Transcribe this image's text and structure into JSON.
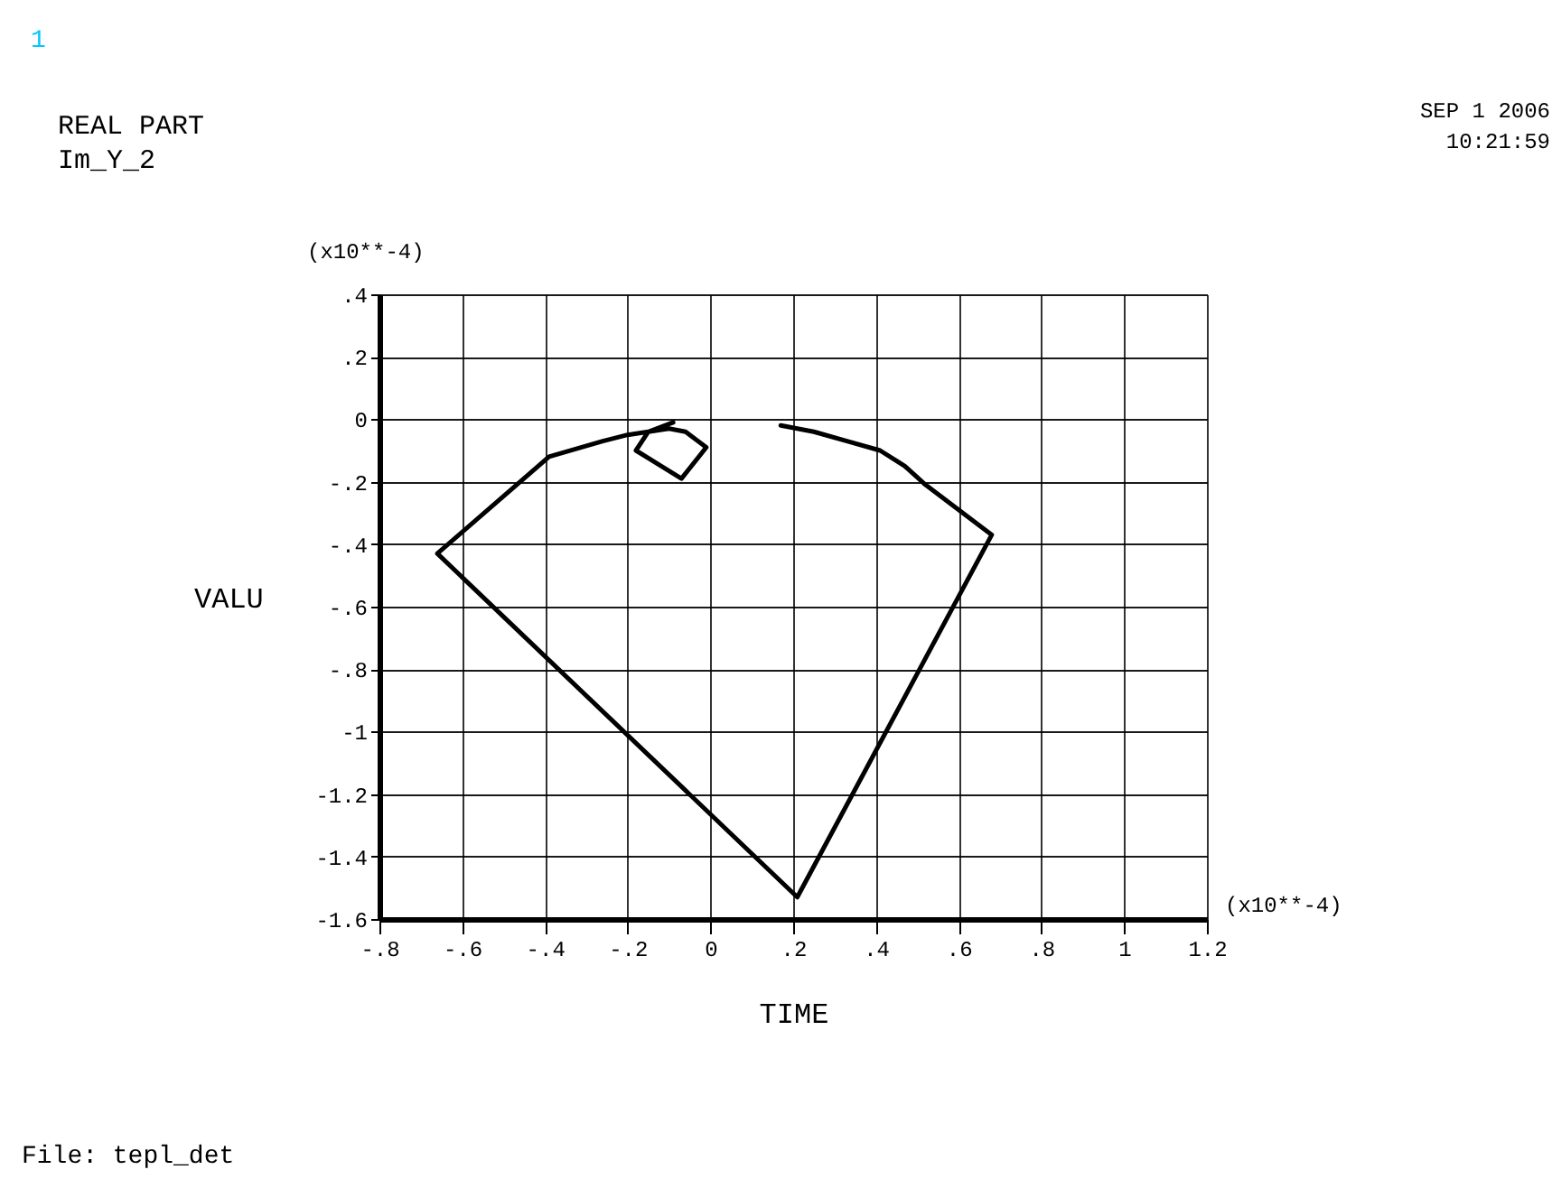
{
  "chart_data": {
    "type": "line",
    "title": "REAL PART",
    "subtitle": "Im_Y_2",
    "xlabel": "TIME",
    "ylabel": "VALU",
    "annotations": [
      "1",
      "(x10**-4)",
      "(x10**-4)",
      "SEP 1 2006",
      "10:21:59",
      "File: tepl_det"
    ],
    "x": [
      0.17,
      0.25,
      0.33,
      0.41,
      0.47,
      0.52,
      0.6,
      0.68,
      0.21,
      -0.66,
      -0.39,
      -0.26,
      -0.2,
      -0.15,
      -0.1,
      -0.06,
      -0.01,
      -0.07,
      -0.18,
      -0.15,
      -0.09
    ],
    "series": [
      {
        "color": "#000000",
        "values": [
          -0.02,
          -0.04,
          -0.07,
          -0.1,
          -0.15,
          -0.21,
          -0.29,
          -0.37,
          -1.53,
          -0.43,
          -0.12,
          -0.07,
          -0.05,
          -0.04,
          -0.03,
          -0.04,
          -0.09,
          -0.19,
          -0.1,
          -0.04,
          -0.01
        ]
      }
    ],
    "xlim": [
      -0.8,
      1.2
    ],
    "xticks": [
      {
        "value": -0.8,
        "label": "-.8"
      },
      {
        "value": -0.6,
        "label": "-.6"
      },
      {
        "value": -0.4,
        "label": "-.4"
      },
      {
        "value": -0.2,
        "label": "-.2"
      },
      0,
      {
        "value": 0.2,
        "label": ".2"
      },
      {
        "value": 0.4,
        "label": ".4"
      },
      {
        "value": 0.6,
        "label": ".6"
      },
      {
        "value": 0.8,
        "label": ".8"
      },
      1,
      1.2
    ],
    "ylim": [
      -1.6,
      0.4
    ],
    "yticks": [
      {
        "value": 0.4,
        "label": ".4"
      },
      {
        "value": 0.2,
        "label": ".2"
      },
      0,
      {
        "value": -0.2,
        "label": "-.2"
      },
      {
        "value": -0.4,
        "label": "-.4"
      },
      {
        "value": -0.6,
        "label": "-.6"
      },
      {
        "value": -0.8,
        "label": "-.8"
      },
      -1,
      -1.2,
      -1.4,
      -1.6
    ],
    "grid": true
  }
}
